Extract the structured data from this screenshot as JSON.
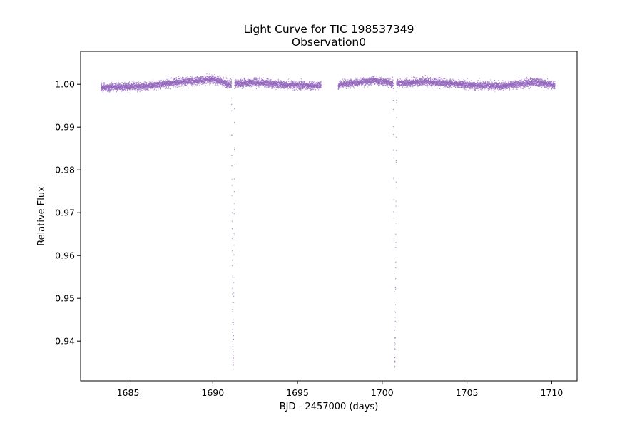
{
  "chart_data": {
    "type": "scatter",
    "title": "Light Curve for TIC 198537349",
    "subtitle": "Observation0",
    "xlabel": "BJD - 2457000 (days)",
    "ylabel": "Relative Flux",
    "xlim": [
      1682.2,
      1711.5
    ],
    "ylim": [
      0.9307,
      1.0077
    ],
    "x_ticks": [
      1685,
      1690,
      1695,
      1700,
      1705,
      1710
    ],
    "x_tick_labels": [
      "1685",
      "1690",
      "1695",
      "1700",
      "1705",
      "1710"
    ],
    "y_ticks": [
      0.94,
      0.95,
      0.96,
      0.97,
      0.98,
      0.99,
      1.0
    ],
    "y_tick_labels": [
      "0.94",
      "0.95",
      "0.96",
      "0.97",
      "0.98",
      "0.99",
      "1.00"
    ],
    "grid": false,
    "marker_color": "#9467bd",
    "segments": [
      {
        "x_start": 1683.4,
        "x_end": 1696.4
      },
      {
        "x_start": 1697.4,
        "x_end": 1710.2
      }
    ],
    "eclipses": [
      {
        "x_center": 1691.2,
        "min_flux": 0.9343
      },
      {
        "x_center": 1700.75,
        "min_flux": 0.9343
      }
    ],
    "baseline_flux": [
      {
        "x": 1683.4,
        "y": 0.9993
      },
      {
        "x": 1686.0,
        "y": 0.9995
      },
      {
        "x": 1688.0,
        "y": 1.0005
      },
      {
        "x": 1690.0,
        "y": 1.0012
      },
      {
        "x": 1691.0,
        "y": 1.0
      },
      {
        "x": 1692.5,
        "y": 1.0005
      },
      {
        "x": 1694.5,
        "y": 0.9998
      },
      {
        "x": 1696.4,
        "y": 0.9997
      },
      {
        "x": 1697.4,
        "y": 0.9999
      },
      {
        "x": 1699.5,
        "y": 1.0009
      },
      {
        "x": 1700.6,
        "y": 1.0002
      },
      {
        "x": 1702.5,
        "y": 1.0006
      },
      {
        "x": 1705.0,
        "y": 0.9999
      },
      {
        "x": 1707.0,
        "y": 0.9995
      },
      {
        "x": 1709.0,
        "y": 1.0005
      },
      {
        "x": 1710.2,
        "y": 0.9998
      }
    ]
  }
}
